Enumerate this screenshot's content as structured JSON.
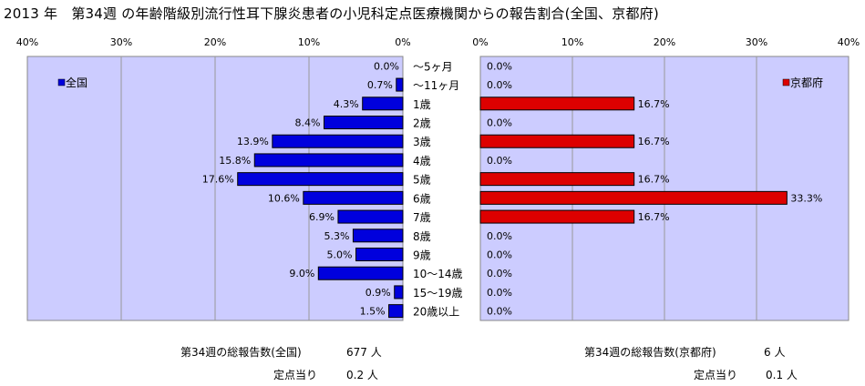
{
  "title": "2013 年　第34週 の年齢階級別流行性耳下腺炎患者の小児科定点医療機関からの報告割合(全国、京都府)",
  "colors": {
    "national_bar": "#0000dd",
    "kyoto_bar": "#dd0000",
    "plot_bg": "#ccccff",
    "grid": "#999999"
  },
  "chart_data": [
    {
      "type": "bar",
      "orientation": "horizontal",
      "direction": "right-to-left",
      "categories": [
        "～5ヶ月",
        "～11ヶ月",
        "1歳",
        "2歳",
        "3歳",
        "4歳",
        "5歳",
        "6歳",
        "7歳",
        "8歳",
        "9歳",
        "10～14歳",
        "15～19歳",
        "20歳以上"
      ],
      "series": [
        {
          "name": "全国",
          "values": [
            0.0,
            0.7,
            4.3,
            8.4,
            13.9,
            15.8,
            17.6,
            10.6,
            6.9,
            5.3,
            5.0,
            9.0,
            0.9,
            1.5
          ],
          "labels": [
            "0.0%",
            "0.7%",
            "4.3%",
            "8.4%",
            "13.9%",
            "15.8%",
            "17.6%",
            "10.6%",
            "6.9%",
            "5.3%",
            "5.0%",
            "9.0%",
            "0.9%",
            "1.5%"
          ]
        }
      ],
      "xlim": [
        0,
        40
      ],
      "ticks": [
        "40%",
        "30%",
        "20%",
        "10%",
        "0%"
      ],
      "legend": "top-left",
      "grid": true
    },
    {
      "type": "bar",
      "orientation": "horizontal",
      "direction": "left-to-right",
      "categories": [
        "～5ヶ月",
        "～11ヶ月",
        "1歳",
        "2歳",
        "3歳",
        "4歳",
        "5歳",
        "6歳",
        "7歳",
        "8歳",
        "9歳",
        "10～14歳",
        "15～19歳",
        "20歳以上"
      ],
      "series": [
        {
          "name": "京都府",
          "values": [
            0.0,
            0.0,
            16.7,
            0.0,
            16.7,
            0.0,
            16.7,
            33.3,
            16.7,
            0.0,
            0.0,
            0.0,
            0.0,
            0.0
          ],
          "labels": [
            "0.0%",
            "0.0%",
            "16.7%",
            "0.0%",
            "16.7%",
            "0.0%",
            "16.7%",
            "33.3%",
            "16.7%",
            "0.0%",
            "0.0%",
            "0.0%",
            "0.0%",
            "0.0%"
          ]
        }
      ],
      "xlim": [
        0,
        40
      ],
      "ticks": [
        "0%",
        "10%",
        "20%",
        "30%",
        "40%"
      ],
      "legend": "top-right",
      "grid": true
    }
  ],
  "footer": {
    "national_total_label": "第34週の総報告数(全国)",
    "national_total_value": "677 人",
    "national_per_label": "定点当り",
    "national_per_value": "0.2 人",
    "kyoto_total_label": "第34週の総報告数(京都府)",
    "kyoto_total_value": "6 人",
    "kyoto_per_label": "定点当り",
    "kyoto_per_value": "0.1 人"
  }
}
